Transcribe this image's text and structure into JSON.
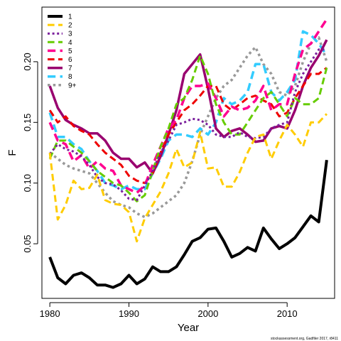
{
  "chart_data": {
    "type": "line",
    "title": "",
    "xlabel": "Year",
    "ylabel": "F",
    "xlim": [
      1979,
      2016
    ],
    "ylim": [
      0.005,
      0.245
    ],
    "x_ticks": [
      1980,
      1990,
      2000,
      2010
    ],
    "y_ticks": [
      0.05,
      0.1,
      0.15,
      0.2
    ],
    "x_tick_labels": [
      "1980",
      "1990",
      "2000",
      "2010"
    ],
    "y_tick_labels": [
      "0.05",
      "0.10",
      "0.15",
      "0.20"
    ],
    "grid": false,
    "legend_position": "top-left",
    "footnote": "stockassessment.org, Gadfiler 2017, r8411",
    "x": [
      1980,
      1981,
      1982,
      1983,
      1984,
      1985,
      1986,
      1987,
      1988,
      1989,
      1990,
      1991,
      1992,
      1993,
      1994,
      1995,
      1996,
      1997,
      1998,
      1999,
      2000,
      2001,
      2002,
      2003,
      2004,
      2005,
      2006,
      2007,
      2008,
      2009,
      2010,
      2011,
      2012,
      2013,
      2014,
      2015
    ],
    "series": [
      {
        "name": "1",
        "color": "#000000",
        "dash": "solid",
        "width": 4,
        "values": [
          0.039,
          0.022,
          0.017,
          0.024,
          0.026,
          0.022,
          0.016,
          0.016,
          0.014,
          0.017,
          0.024,
          0.017,
          0.021,
          0.031,
          0.027,
          0.027,
          0.031,
          0.041,
          0.052,
          0.055,
          0.062,
          0.063,
          0.052,
          0.039,
          0.042,
          0.047,
          0.044,
          0.063,
          0.054,
          0.046,
          0.05,
          0.055,
          0.064,
          0.073,
          0.068,
          0.119
        ]
      },
      {
        "name": "2",
        "color": "#FFCC00",
        "dash": "dashed",
        "width": 3,
        "values": [
          0.125,
          0.07,
          0.082,
          0.102,
          0.095,
          0.096,
          0.107,
          0.086,
          0.083,
          0.082,
          0.076,
          0.052,
          0.071,
          0.082,
          0.093,
          0.108,
          0.128,
          0.113,
          0.117,
          0.142,
          0.112,
          0.113,
          0.097,
          0.097,
          0.109,
          0.125,
          0.138,
          0.14,
          0.12,
          0.135,
          0.148,
          0.14,
          0.13,
          0.15,
          0.15,
          0.157
        ]
      },
      {
        "name": "3",
        "color": "#7A1F9C",
        "dash": "dotted",
        "width": 3,
        "values": [
          0.124,
          0.132,
          0.128,
          0.126,
          0.122,
          0.115,
          0.105,
          0.1,
          0.099,
          0.094,
          0.087,
          0.086,
          0.098,
          0.11,
          0.125,
          0.135,
          0.148,
          0.15,
          0.153,
          0.152,
          0.148,
          0.14,
          0.138,
          0.138,
          0.142,
          0.138,
          0.137,
          0.138,
          0.145,
          0.148,
          0.15,
          0.175,
          0.19,
          0.2,
          0.21,
          0.21
        ]
      },
      {
        "name": "4",
        "color": "#66CC00",
        "dash": "dashed",
        "width": 3,
        "values": [
          0.12,
          0.135,
          0.135,
          0.13,
          0.125,
          0.118,
          0.11,
          0.105,
          0.1,
          0.098,
          0.092,
          0.085,
          0.09,
          0.11,
          0.13,
          0.145,
          0.165,
          0.17,
          0.185,
          0.205,
          0.19,
          0.165,
          0.15,
          0.14,
          0.14,
          0.15,
          0.16,
          0.17,
          0.175,
          0.165,
          0.155,
          0.17,
          0.165,
          0.165,
          0.17,
          0.195
        ]
      },
      {
        "name": "5",
        "color": "#FF0090",
        "dash": "dashed",
        "width": 3.5,
        "values": [
          0.15,
          0.135,
          0.132,
          0.118,
          0.123,
          0.112,
          0.118,
          0.112,
          0.11,
          0.098,
          0.095,
          0.092,
          0.098,
          0.115,
          0.13,
          0.145,
          0.152,
          0.17,
          0.18,
          0.18,
          0.182,
          0.17,
          0.155,
          0.163,
          0.16,
          0.162,
          0.168,
          0.18,
          0.16,
          0.165,
          0.165,
          0.19,
          0.21,
          0.215,
          0.225,
          0.235
        ]
      },
      {
        "name": "6",
        "color": "#EE0000",
        "dash": "dashed",
        "width": 3,
        "values": [
          0.16,
          0.15,
          0.155,
          0.147,
          0.143,
          0.14,
          0.132,
          0.125,
          0.12,
          0.115,
          0.106,
          0.102,
          0.1,
          0.108,
          0.125,
          0.14,
          0.15,
          0.16,
          0.165,
          0.172,
          0.18,
          0.18,
          0.165,
          0.16,
          0.165,
          0.17,
          0.172,
          0.168,
          0.165,
          0.155,
          0.158,
          0.17,
          0.18,
          0.19,
          0.19,
          0.195
        ]
      },
      {
        "name": "7",
        "color": "#99006F",
        "dash": "solid",
        "width": 3.5,
        "values": [
          0.18,
          0.162,
          0.152,
          0.148,
          0.145,
          0.141,
          0.141,
          0.135,
          0.125,
          0.12,
          0.12,
          0.113,
          0.117,
          0.108,
          0.122,
          0.14,
          0.16,
          0.19,
          0.198,
          0.206,
          0.178,
          0.145,
          0.138,
          0.143,
          0.145,
          0.14,
          0.134,
          0.135,
          0.145,
          0.147,
          0.145,
          0.16,
          0.18,
          0.195,
          0.205,
          0.218
        ]
      },
      {
        "name": "8",
        "color": "#33CCFF",
        "dash": "dashed",
        "width": 3.5,
        "values": [
          0.158,
          0.138,
          0.138,
          0.132,
          0.128,
          0.118,
          0.11,
          0.1,
          0.098,
          0.095,
          0.098,
          0.095,
          0.095,
          0.108,
          0.12,
          0.135,
          0.14,
          0.14,
          0.138,
          0.145,
          0.14,
          0.15,
          0.17,
          0.165,
          0.168,
          0.175,
          0.198,
          0.198,
          0.175,
          0.168,
          0.175,
          0.185,
          0.225,
          0.222,
          0.215,
          0.205
        ]
      },
      {
        "name": "9+",
        "color": "#999999",
        "dash": "dotted",
        "width": 3.5,
        "values": [
          0.125,
          0.12,
          0.115,
          0.112,
          0.11,
          0.108,
          0.1,
          0.092,
          0.085,
          0.082,
          0.08,
          0.075,
          0.072,
          0.075,
          0.08,
          0.085,
          0.09,
          0.1,
          0.118,
          0.14,
          0.155,
          0.17,
          0.18,
          0.185,
          0.195,
          0.205,
          0.212,
          0.198,
          0.19,
          0.175,
          0.172,
          0.18,
          0.2,
          0.215,
          0.22,
          0.2
        ]
      }
    ]
  }
}
